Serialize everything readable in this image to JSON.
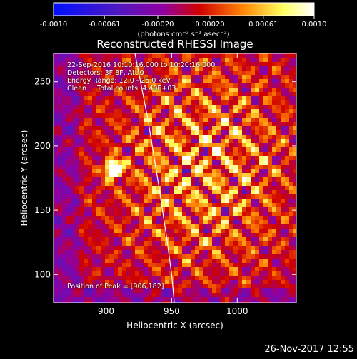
{
  "chart_data": {
    "type": "heatmap",
    "title": "Reconstructed RHESSI Image",
    "xlabel": "Heliocentric X (arcsec)",
    "ylabel": "Heliocentric Y (arcsec)",
    "xlim": [
      860,
      1045
    ],
    "ylim": [
      78,
      272
    ],
    "x_ticks": [
      900,
      950,
      1000
    ],
    "y_ticks": [
      100,
      150,
      200,
      250
    ],
    "grid": false,
    "colorbar": {
      "range": [
        -0.001,
        0.001
      ],
      "tick_labels": [
        "-0.0010",
        "-0.00061",
        "-0.00020",
        "0.00020",
        "0.00061",
        "0.0010"
      ],
      "label": "(photons cm⁻² s⁻¹ asec⁻²)",
      "colors": [
        "#0010ff",
        "#5018c0",
        "#9000a0",
        "#d00000",
        "#ff8000",
        "#ffff60",
        "#ffffff"
      ]
    },
    "annotations": {
      "time_range": "22-Sep-2016 10:10:16.000 to 10:20:16.000",
      "detectors": "Detectors: 3F 8F, Att 0",
      "energy": "Energy Range: 12.0 - 25.0 keV",
      "method": "Clean     Total counts: 4.40E+03",
      "peak": "Position of Peak = [906,182]"
    },
    "peak_position": [
      906,
      182
    ],
    "limb_curve": [
      [
        922,
        272
      ],
      [
        932,
        220
      ],
      [
        940,
        170
      ],
      [
        946,
        130
      ],
      [
        950,
        100
      ],
      [
        952,
        78
      ]
    ]
  },
  "footer": {
    "date": "26-Nov-2017 12:55"
  }
}
